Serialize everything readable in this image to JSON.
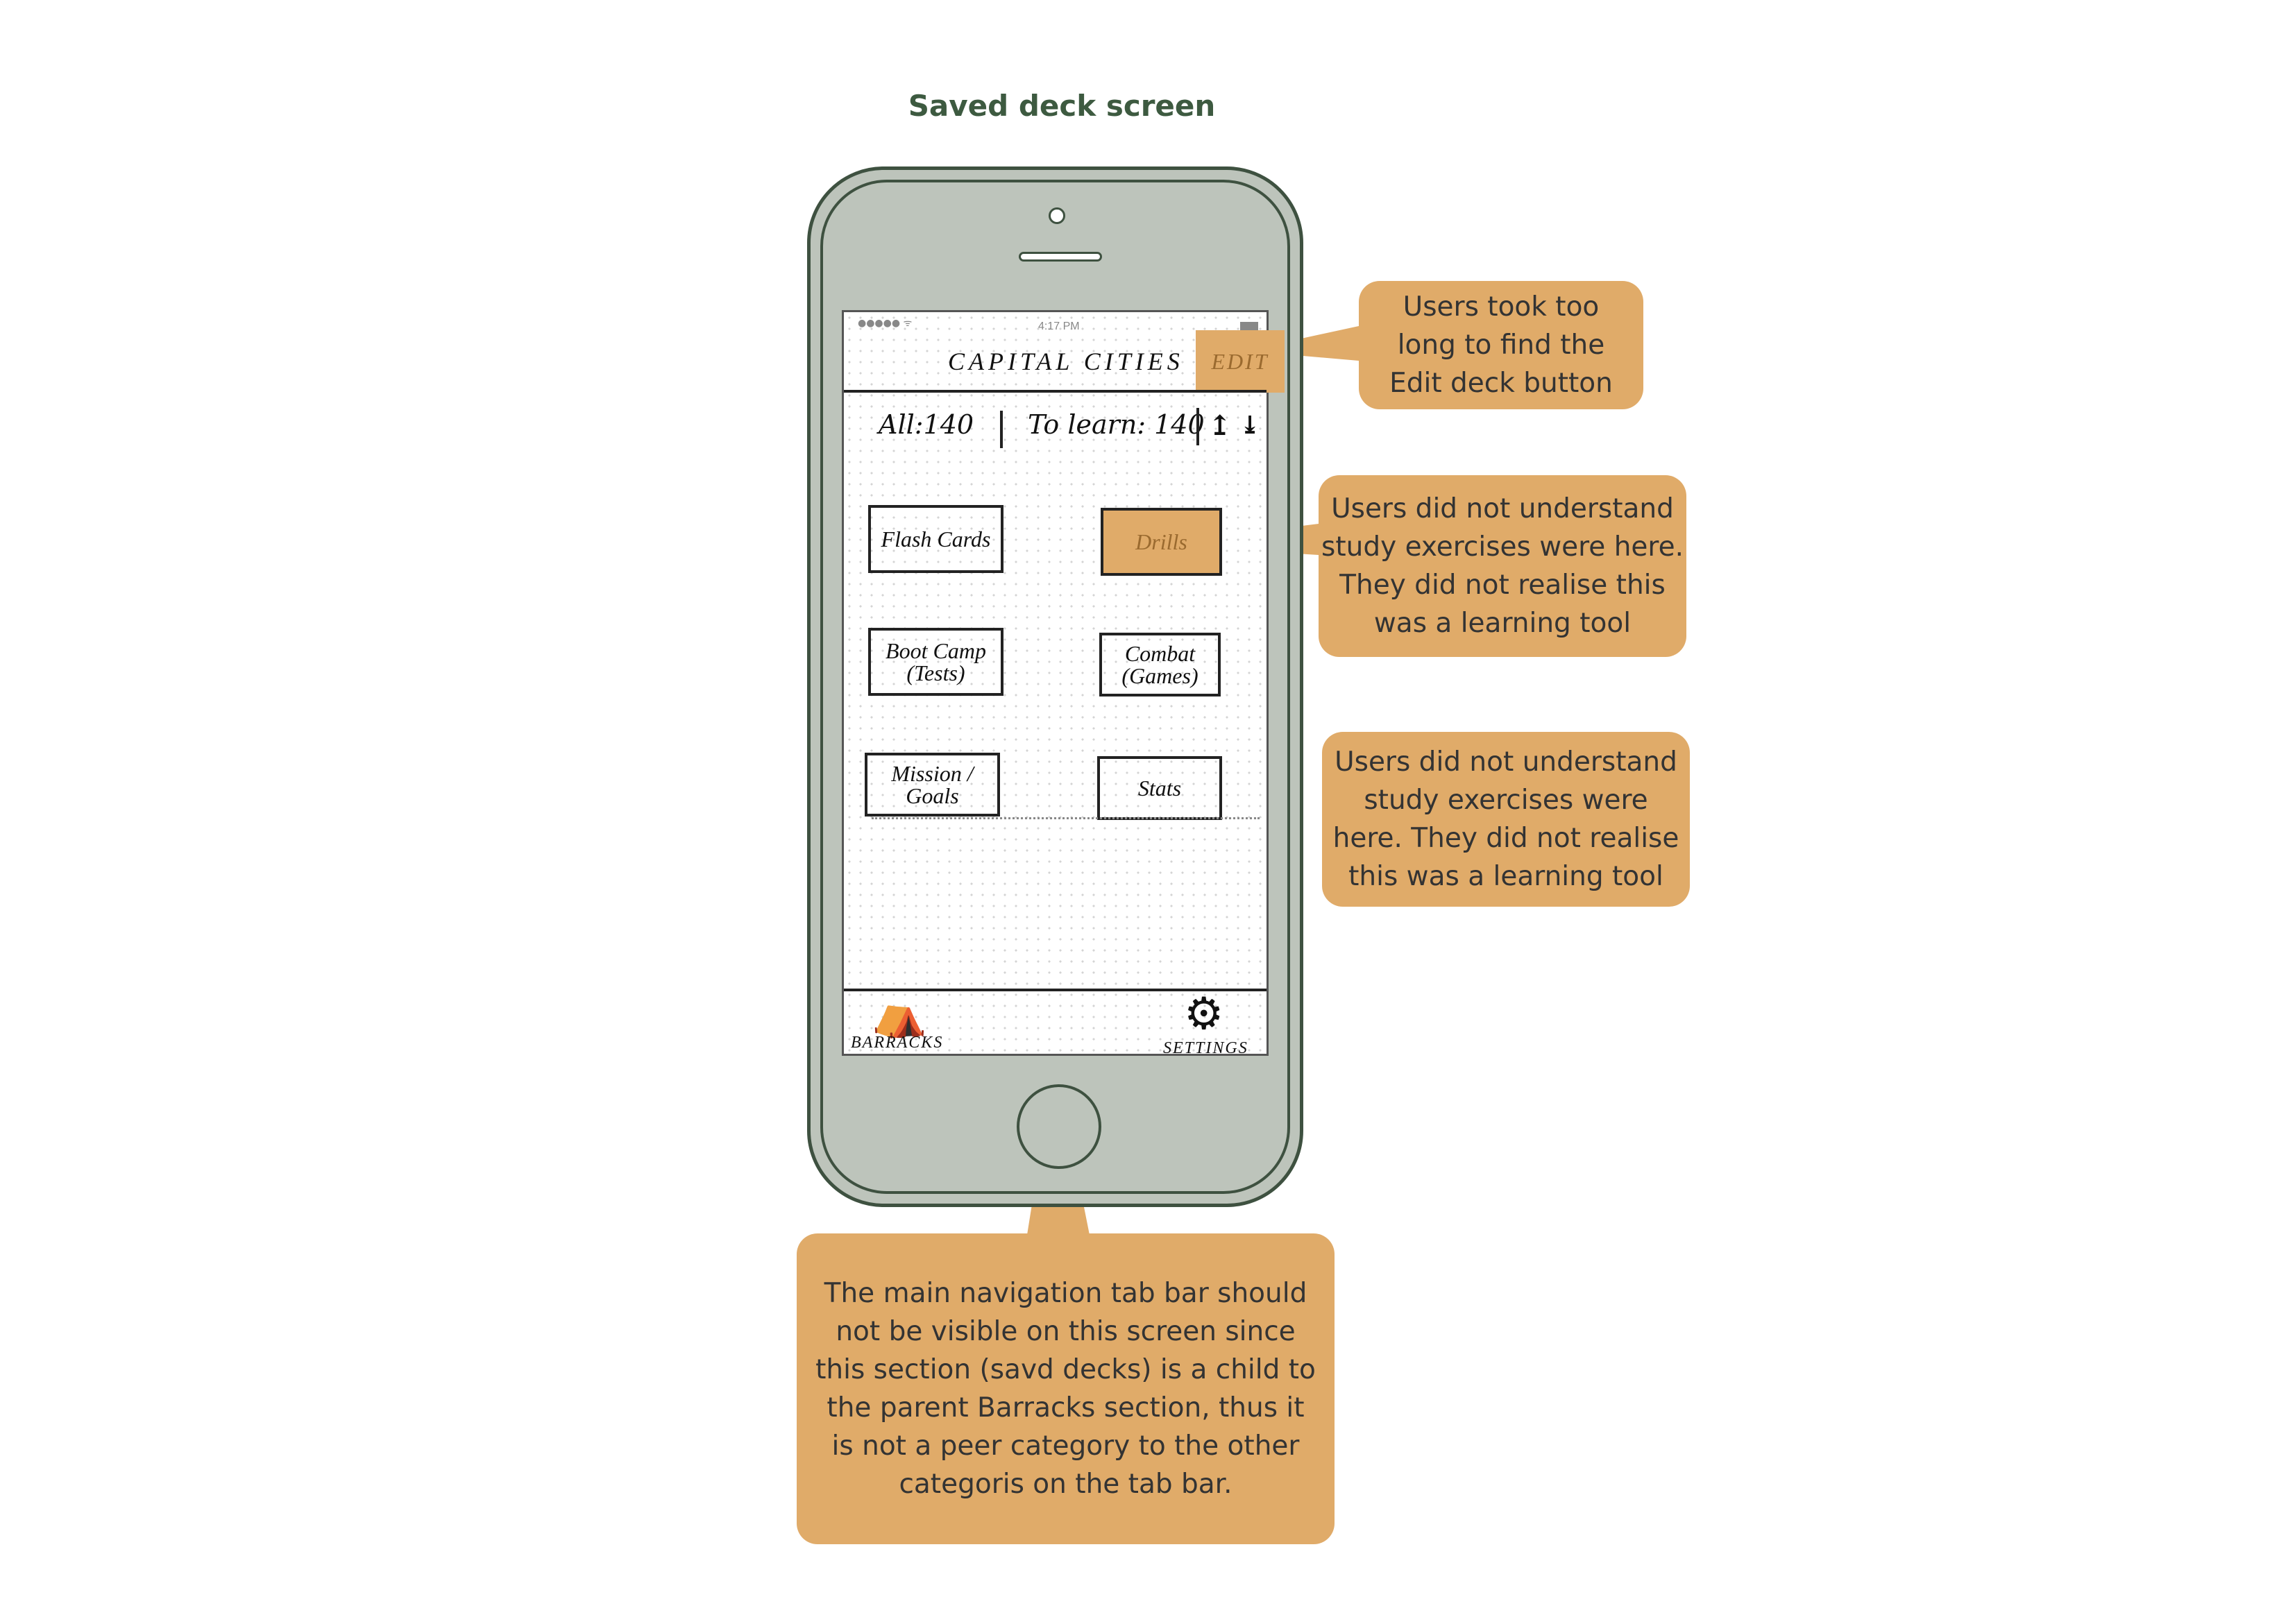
{
  "page": {
    "title": "Saved deck screen"
  },
  "screen": {
    "status_bar": {
      "signal": "●●●●● ᯤ",
      "time": "4:17 PM"
    },
    "nav": {
      "title": "CAPITAL CITIES",
      "edit_label": "EDIT"
    },
    "counts": {
      "all": "All:140",
      "to_learn": "To learn: 140",
      "upload_icon": "↥",
      "download_icon": "⤓"
    },
    "exercises": [
      {
        "label": "Flash Cards",
        "highlighted": false
      },
      {
        "label": "Drills",
        "highlighted": true
      },
      {
        "label": "Boot Camp\n(Tests)",
        "highlighted": false
      },
      {
        "label": "Combat\n(Games)",
        "highlighted": false
      },
      {
        "label": "Mission /\nGoals",
        "highlighted": false
      },
      {
        "label": "Stats",
        "highlighted": false
      }
    ],
    "tab_bar": {
      "barracks": {
        "label": "BARRACKS",
        "icon": "tent-icon",
        "glyph": "⛺"
      },
      "settings": {
        "label": "SETTINGS",
        "icon": "gear-icon",
        "glyph": "⚙"
      }
    }
  },
  "annotations": {
    "edit_note": "Users took too\nlong to find the\nEdit deck button",
    "drills_note": "Users did not understand\nstudy exercises were here.\nThey did not realise this\nwas a learning tool",
    "study_note": "Users did not understand\nstudy exercises were\nhere. They did not realise\nthis was a learning tool",
    "tabbar_note": "The main navigation tab bar should\nnot be visible on this screen since\nthis section (savd decks) is a child to\nthe parent Barracks section, thus it\nis not a peer category to the other\ncategoris on the tab bar."
  },
  "colors": {
    "annotation": "#e0ab69",
    "phone_body": "#bdc4bb",
    "phone_outline": "#3e5140",
    "title": "#3d5a40"
  }
}
